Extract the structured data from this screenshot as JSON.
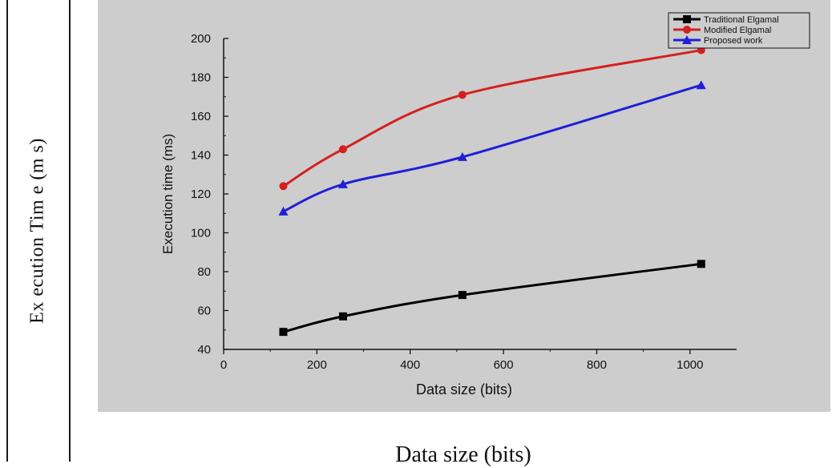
{
  "figure": {
    "outer_ylabel": "Ex ecution Tim e (m s)",
    "outer_xlabel": "Data size (bits)"
  },
  "chart_data": {
    "type": "line",
    "xlabel": "Data size (bits)",
    "ylabel": "Execution time (ms)",
    "xlim": [
      0,
      1100
    ],
    "ylim": [
      40,
      200
    ],
    "xticks": [
      0,
      200,
      400,
      600,
      800,
      1000
    ],
    "yticks": [
      40,
      60,
      80,
      100,
      120,
      140,
      160,
      180,
      200
    ],
    "x": [
      128,
      256,
      512,
      1024
    ],
    "series": [
      {
        "name": "Traditional Elgamal",
        "values": [
          49,
          57,
          68,
          84
        ],
        "color": "#000000",
        "marker": "square"
      },
      {
        "name": "Modified Elgamal",
        "values": [
          124,
          143,
          171,
          194
        ],
        "color": "#d42020",
        "marker": "circle"
      },
      {
        "name": "Proposed work",
        "values": [
          111,
          125,
          139,
          176
        ],
        "color": "#1f1fd6",
        "marker": "triangle"
      }
    ],
    "legend_position": "top-right",
    "grid": false
  }
}
